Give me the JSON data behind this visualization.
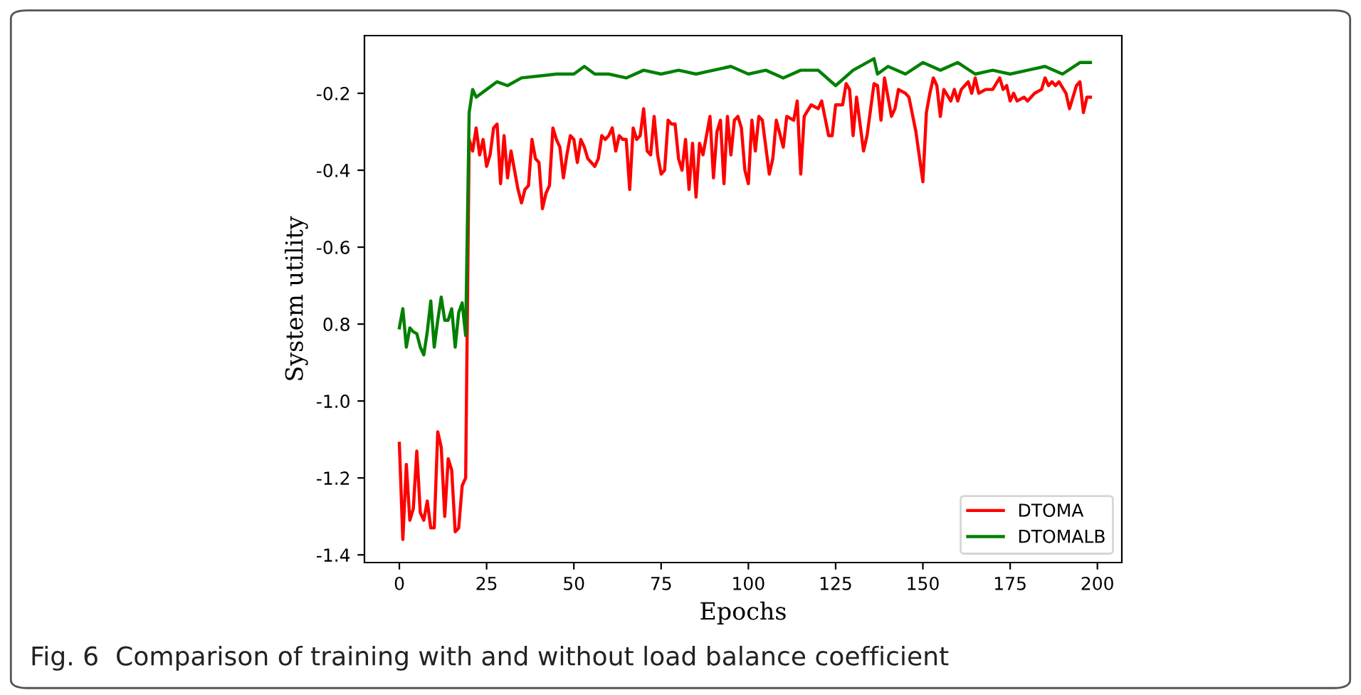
{
  "chart_data": {
    "type": "line",
    "xlabel": "Epochs",
    "ylabel": "System utility",
    "annotations": [
      "Fig. 6  Comparison of training with and without load balance coefficient"
    ],
    "xlim": [
      -10,
      207
    ],
    "ylim": [
      -1.42,
      -0.05
    ],
    "xticks": [
      0,
      25,
      50,
      75,
      100,
      125,
      150,
      175,
      200
    ],
    "yticks": [
      -1.4,
      -1.2,
      {
        "value": -1.0,
        "label": "-1.0"
      },
      {
        "value": -0.8,
        "label": "0.8"
      },
      -0.6,
      -0.4,
      -0.2
    ],
    "legend": "bottom right",
    "grid": false,
    "line_style": "solid",
    "marker": "none",
    "series": [
      {
        "name": "DTOMA",
        "color": "#ff0000",
        "x": [
          0,
          1,
          2,
          3,
          4,
          5,
          6,
          7,
          8,
          9,
          10,
          11,
          12,
          13,
          14,
          15,
          16,
          17,
          18,
          19,
          20,
          21,
          22,
          23,
          24,
          25,
          26,
          27,
          28,
          29,
          30,
          31,
          32,
          33,
          34,
          35,
          36,
          37,
          38,
          39,
          40,
          41,
          42,
          43,
          44,
          45,
          46,
          47,
          48,
          49,
          50,
          51,
          52,
          53,
          54,
          55,
          56,
          57,
          58,
          59,
          60,
          61,
          62,
          63,
          64,
          65,
          66,
          67,
          68,
          69,
          70,
          71,
          72,
          73,
          74,
          75,
          76,
          77,
          78,
          79,
          80,
          81,
          82,
          83,
          84,
          85,
          86,
          87,
          88,
          89,
          90,
          91,
          92,
          93,
          94,
          95,
          96,
          97,
          98,
          99,
          100,
          101,
          102,
          103,
          104,
          106,
          107,
          108,
          110,
          111,
          113,
          114,
          115,
          116,
          118,
          120,
          121,
          123,
          124,
          125,
          127,
          128,
          129,
          130,
          131,
          133,
          134,
          136,
          137,
          138,
          139,
          141,
          142,
          143,
          145,
          146,
          148,
          150,
          151,
          152,
          153,
          154,
          155,
          156,
          158,
          159,
          160,
          161,
          162,
          163,
          164,
          165,
          166,
          168,
          170,
          172,
          173,
          174,
          175,
          176,
          177,
          179,
          180,
          182,
          184,
          185,
          186,
          187,
          188,
          189,
          191,
          192,
          193,
          194,
          195,
          196,
          197,
          198
        ],
        "values": [
          -1.11,
          -1.36,
          -1.165,
          -1.31,
          -1.28,
          -1.13,
          -1.29,
          -1.31,
          -1.26,
          -1.33,
          -1.33,
          -1.08,
          -1.12,
          -1.3,
          -1.15,
          -1.18,
          -1.34,
          -1.33,
          -1.22,
          -1.2,
          -0.32,
          -0.35,
          -0.29,
          -0.36,
          -0.32,
          -0.39,
          -0.36,
          -0.29,
          -0.28,
          -0.435,
          -0.31,
          -0.42,
          -0.35,
          -0.4,
          -0.45,
          -0.485,
          -0.45,
          -0.44,
          -0.32,
          -0.37,
          -0.38,
          -0.5,
          -0.46,
          -0.44,
          -0.29,
          -0.32,
          -0.34,
          -0.42,
          -0.36,
          -0.31,
          -0.32,
          -0.38,
          -0.32,
          -0.34,
          -0.37,
          -0.38,
          -0.39,
          -0.37,
          -0.31,
          -0.32,
          -0.31,
          -0.29,
          -0.35,
          -0.31,
          -0.32,
          -0.32,
          -0.45,
          -0.29,
          -0.32,
          -0.31,
          -0.24,
          -0.35,
          -0.36,
          -0.26,
          -0.36,
          -0.41,
          -0.4,
          -0.27,
          -0.28,
          -0.28,
          -0.37,
          -0.4,
          -0.32,
          -0.45,
          -0.33,
          -0.47,
          -0.33,
          -0.36,
          -0.31,
          -0.26,
          -0.42,
          -0.3,
          -0.27,
          -0.435,
          -0.26,
          -0.36,
          -0.27,
          -0.26,
          -0.29,
          -0.4,
          -0.435,
          -0.27,
          -0.35,
          -0.26,
          -0.27,
          -0.41,
          -0.37,
          -0.27,
          -0.34,
          -0.26,
          -0.27,
          -0.22,
          -0.41,
          -0.26,
          -0.23,
          -0.24,
          -0.22,
          -0.31,
          -0.31,
          -0.23,
          -0.23,
          -0.175,
          -0.19,
          -0.31,
          -0.21,
          -0.35,
          -0.31,
          -0.175,
          -0.18,
          -0.27,
          -0.16,
          -0.26,
          -0.24,
          -0.19,
          -0.2,
          -0.21,
          -0.3,
          -0.43,
          -0.25,
          -0.2,
          -0.16,
          -0.18,
          -0.26,
          -0.19,
          -0.22,
          -0.19,
          -0.22,
          -0.19,
          -0.18,
          -0.17,
          -0.2,
          -0.16,
          -0.2,
          -0.19,
          -0.19,
          -0.16,
          -0.19,
          -0.18,
          -0.22,
          -0.2,
          -0.22,
          -0.21,
          -0.22,
          -0.2,
          -0.19,
          -0.16,
          -0.18,
          -0.17,
          -0.18,
          -0.17,
          -0.2,
          -0.24,
          -0.21,
          -0.18,
          -0.17,
          -0.25,
          -0.21,
          -0.21
        ]
      },
      {
        "name": "DTOMALB",
        "color": "#008000",
        "x": [
          0,
          1,
          2,
          3,
          4,
          5,
          6,
          7,
          8,
          9,
          10,
          11,
          12,
          13,
          14,
          15,
          16,
          17,
          18,
          19,
          20,
          21,
          22,
          25,
          28,
          31,
          35,
          40,
          45,
          50,
          53,
          56,
          60,
          65,
          70,
          75,
          80,
          85,
          90,
          95,
          100,
          105,
          110,
          115,
          120,
          125,
          130,
          136,
          137,
          140,
          145,
          150,
          155,
          160,
          165,
          170,
          175,
          180,
          185,
          190,
          195,
          198
        ],
        "values": [
          -0.81,
          -0.76,
          -0.86,
          -0.81,
          -0.82,
          -0.825,
          -0.86,
          -0.88,
          -0.82,
          -0.74,
          -0.86,
          -0.79,
          -0.73,
          -0.79,
          -0.79,
          -0.76,
          -0.86,
          -0.77,
          -0.745,
          -0.83,
          -0.25,
          -0.19,
          -0.21,
          -0.19,
          -0.17,
          -0.18,
          -0.16,
          -0.155,
          -0.15,
          -0.15,
          -0.13,
          -0.15,
          -0.15,
          -0.16,
          -0.14,
          -0.15,
          -0.14,
          -0.15,
          -0.14,
          -0.13,
          -0.15,
          -0.14,
          -0.16,
          -0.14,
          -0.14,
          -0.18,
          -0.14,
          -0.11,
          -0.15,
          -0.13,
          -0.15,
          -0.12,
          -0.14,
          -0.12,
          -0.15,
          -0.14,
          -0.15,
          -0.14,
          -0.13,
          -0.15,
          -0.12,
          -0.12
        ]
      }
    ]
  }
}
